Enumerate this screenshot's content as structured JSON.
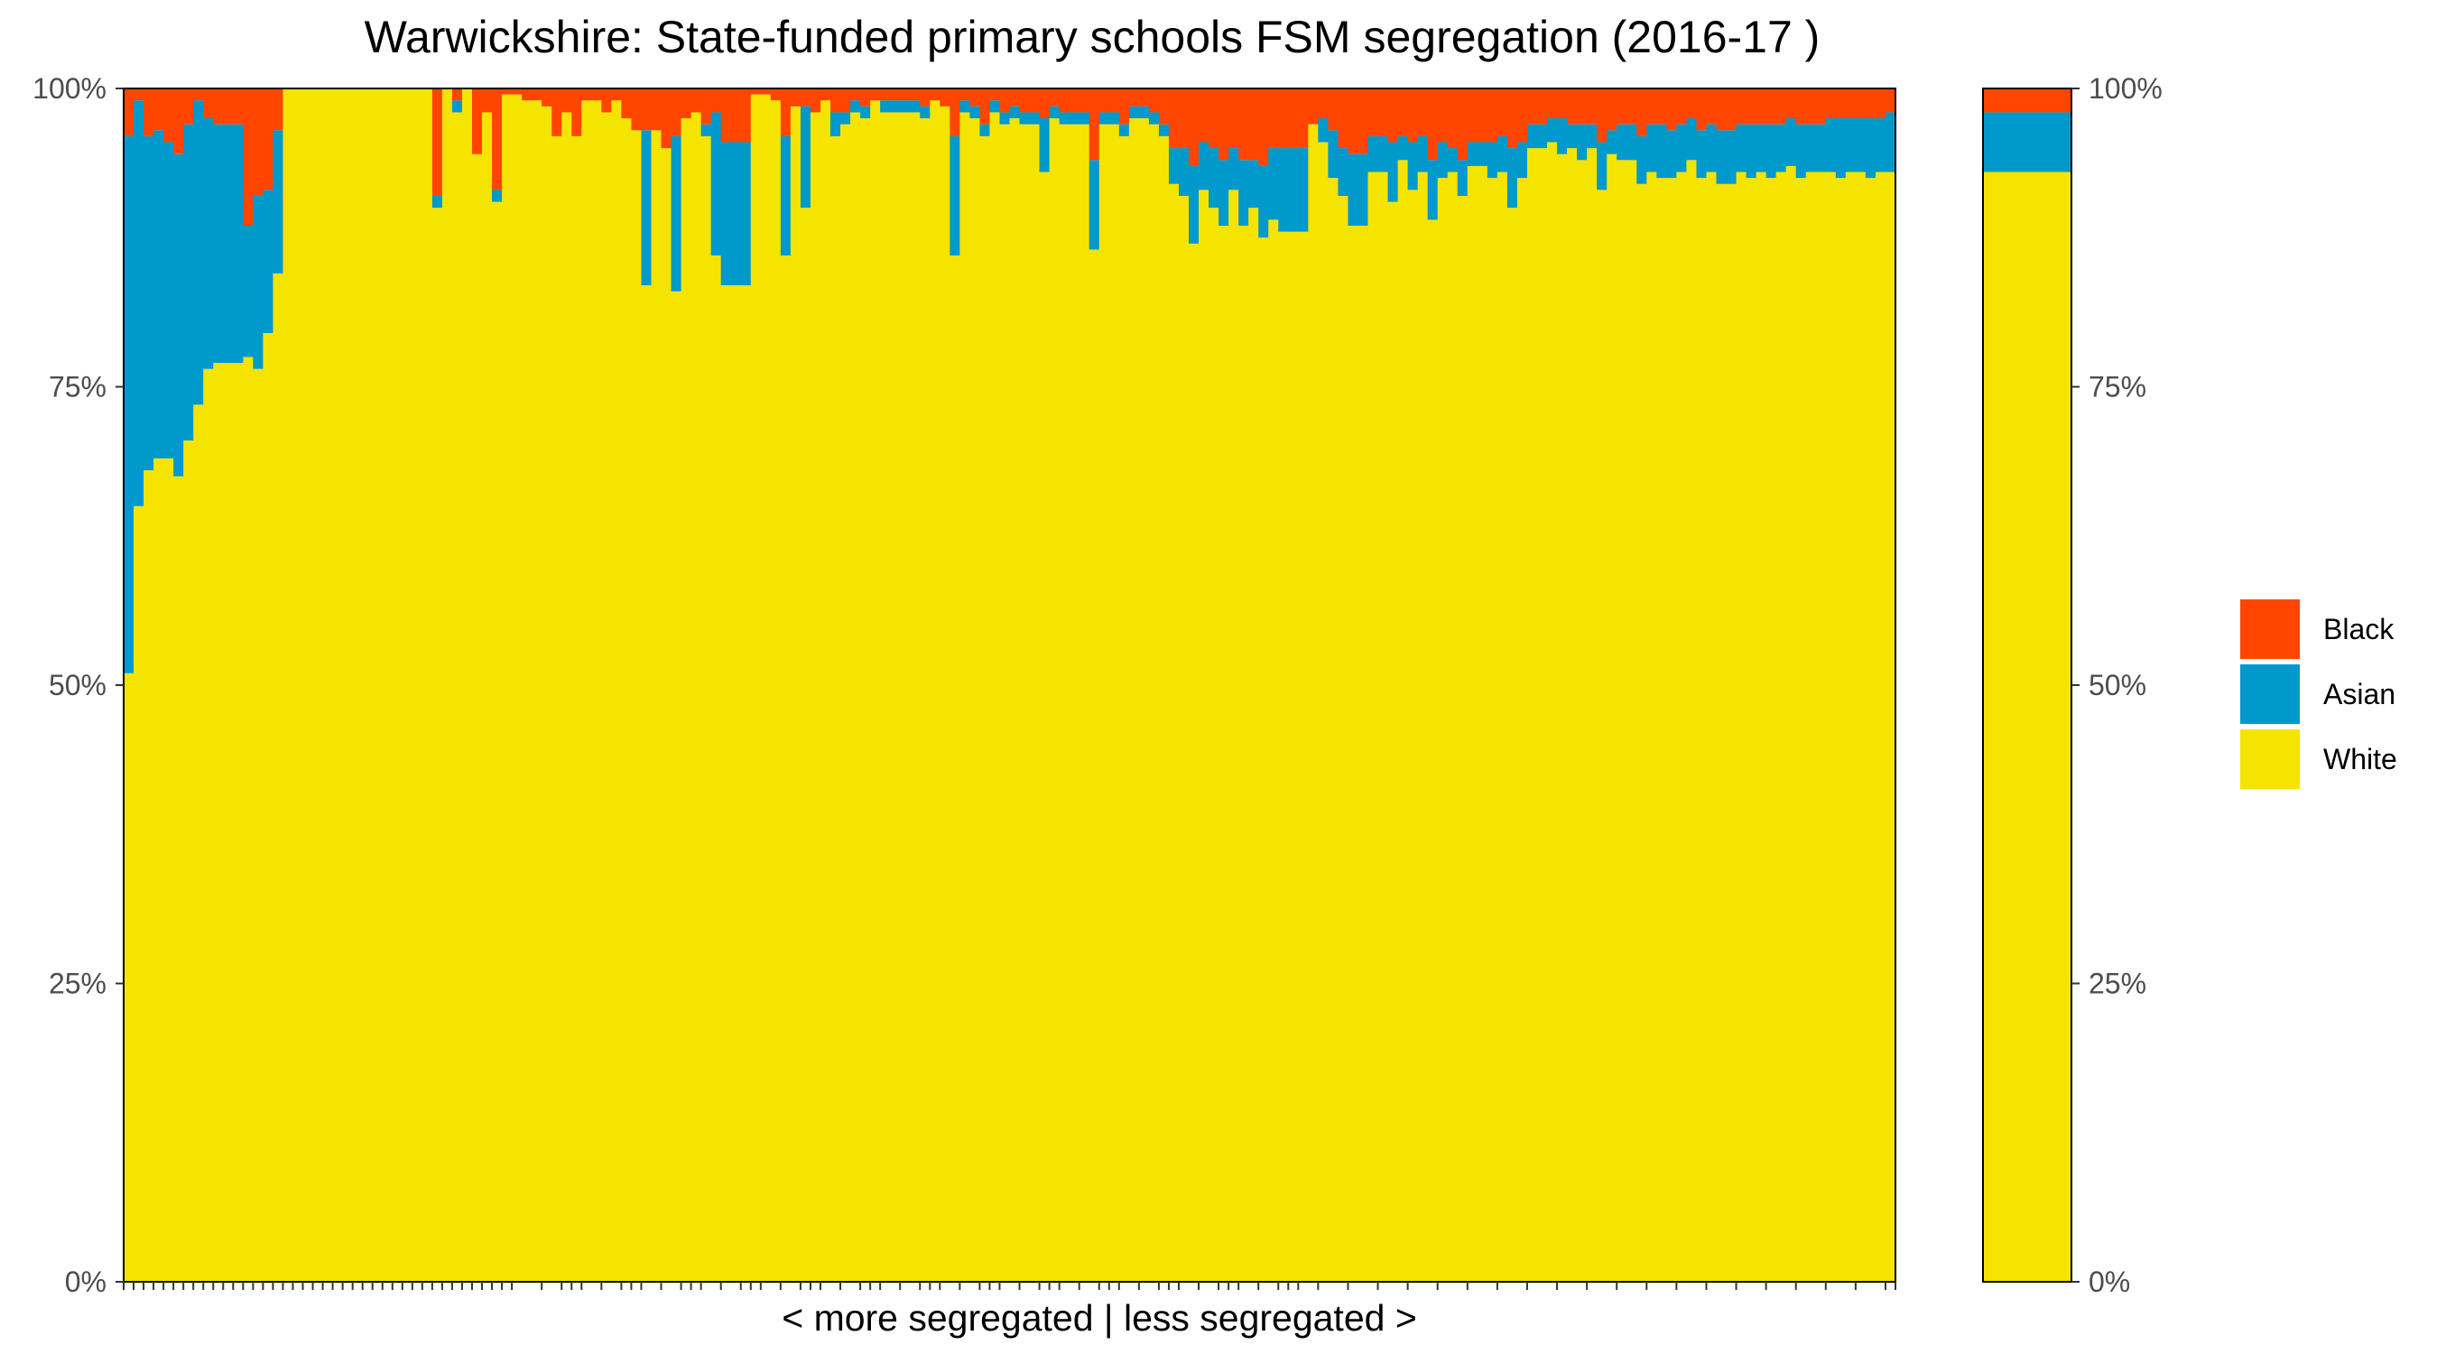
{
  "chart_data": {
    "type": "bar",
    "stacked": true,
    "title": "Warwickshire: State-funded primary schools FSM segregation (2016-17 )",
    "xlabel": "< more segregated | less segregated >",
    "ylabel": "",
    "ylim": [
      0,
      100
    ],
    "y_tick_labels": [
      "0%",
      "25%",
      "50%",
      "75%",
      "100%"
    ],
    "y_tick_values": [
      0,
      25,
      50,
      75,
      100
    ],
    "grid": false,
    "legend_position": "right",
    "colors": {
      "Black": "#FF4500",
      "Asian": "#0099CC",
      "White": "#F5E400",
      "panel_border": "#000000",
      "axis_text": "#4d4d4d"
    },
    "legend": [
      "Black",
      "Asian",
      "White"
    ],
    "x_categories_note": "",
    "series": [
      {
        "name": "White",
        "values": [
          51,
          65,
          68,
          69,
          69,
          67.5,
          70.5,
          73.5,
          76.5,
          77,
          77,
          77,
          77.5,
          76.5,
          79.5,
          84.5,
          100,
          100,
          100,
          100,
          100,
          100,
          100,
          100,
          100,
          100,
          100,
          100,
          100,
          100,
          100,
          90,
          100,
          98,
          100,
          94.5,
          98,
          90.5,
          99.5,
          99.5,
          99,
          99,
          98.5,
          96,
          98,
          96,
          99,
          99,
          98,
          99,
          97.5,
          96.5,
          83.5,
          96.5,
          95,
          83,
          97.5,
          98,
          96,
          86,
          83.5,
          83.5,
          83.5,
          99.5,
          99.5,
          99,
          86,
          98.5,
          90,
          98,
          99,
          96,
          97,
          98,
          97.5,
          99,
          98,
          98,
          98,
          98,
          97.5,
          99,
          98.5,
          86,
          98,
          97.5,
          96,
          98,
          97,
          97.5,
          97,
          97,
          93,
          97.5,
          97,
          97,
          97,
          86.5,
          97,
          97,
          96,
          97.5,
          97.5,
          97,
          96,
          92,
          91,
          87,
          91.5,
          90,
          88.5,
          91.5,
          88.5,
          90,
          87.5,
          89,
          88,
          88,
          88,
          97,
          95.5,
          92.5,
          91,
          88.5,
          88.5,
          93,
          93,
          90.5,
          94,
          91.5,
          93,
          89,
          92.5,
          93,
          91,
          93.5,
          93.5,
          92.5,
          93,
          90,
          92.5,
          95,
          95,
          95.5,
          94.5,
          95,
          94,
          95,
          91.5,
          94.5,
          94,
          94,
          92,
          93,
          92.5,
          92.5,
          93,
          94,
          92.5,
          93,
          92,
          92,
          93,
          92.5,
          93,
          92.5,
          93,
          93.5,
          92.5,
          93,
          93,
          93,
          92.5,
          93,
          93,
          92.5,
          93,
          93
        ]
      },
      {
        "name": "Asian",
        "values": [
          45,
          34,
          28,
          27.5,
          26.5,
          27,
          26.5,
          25.5,
          21,
          20,
          20,
          20,
          11,
          14.5,
          12,
          12,
          0,
          0,
          0,
          0,
          0,
          0,
          0,
          0,
          0,
          0,
          0,
          0,
          0,
          0,
          0,
          1,
          0,
          1,
          0,
          0,
          0,
          1,
          0,
          0,
          0,
          0,
          0,
          0,
          0,
          0,
          0,
          0,
          0,
          0,
          0,
          0,
          13,
          0,
          0,
          13,
          0,
          0,
          1,
          12,
          12,
          12,
          12,
          0,
          0,
          0,
          10,
          0,
          8.5,
          0,
          0,
          2,
          1,
          1,
          1,
          0,
          1,
          1,
          1,
          1,
          1,
          0,
          0,
          10,
          1,
          1,
          1,
          1,
          1,
          1,
          1,
          1,
          4.5,
          1,
          1,
          1,
          1,
          7.5,
          1,
          1,
          1,
          1,
          1,
          1,
          1,
          3,
          4,
          6.5,
          4,
          5,
          5.5,
          3.5,
          5.5,
          4,
          6,
          6,
          7,
          7,
          7,
          0,
          2,
          4,
          4,
          6,
          6,
          3,
          3,
          5,
          2,
          4,
          3,
          5,
          3,
          2,
          3,
          2,
          2,
          3,
          3,
          5,
          3,
          2,
          2,
          2,
          3,
          2,
          3,
          2,
          4,
          2,
          3,
          3,
          4,
          4,
          4.5,
          4,
          4,
          3.5,
          4,
          4,
          4.5,
          4.5,
          4,
          4.5,
          4,
          4.5,
          4,
          4,
          4.5,
          4,
          4,
          4.5,
          5,
          4.5,
          4.5,
          5,
          4.5,
          5
        ]
      }
    ],
    "series_note": "Black share = 100 - White - Asian for each school; overall column at right",
    "overall": {
      "White": 93,
      "Asian": 5,
      "Black": 2
    }
  }
}
